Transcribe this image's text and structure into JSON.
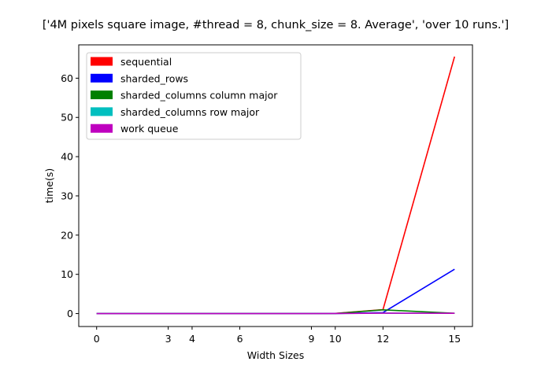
{
  "chart_data": {
    "type": "line",
    "title": "['4M pixels square image, #thread = 8, chunk_size = 8. Average', 'over 10 runs.']",
    "xlabel": "Width Sizes",
    "ylabel": "time(s)",
    "x": [
      0,
      3,
      4,
      6,
      9,
      10,
      12,
      15
    ],
    "xticks": [
      "0",
      "3",
      "4",
      "6",
      "9",
      "10",
      "12",
      "15"
    ],
    "yticks": [
      "0",
      "10",
      "20",
      "30",
      "40",
      "50",
      "60"
    ],
    "xlim": [
      -0.75,
      15.75
    ],
    "ylim": [
      -3.3,
      68.5
    ],
    "legend_position": "top-left",
    "series": [
      {
        "name": "sequential",
        "color": "#ff0000",
        "values": [
          0,
          0,
          0,
          0,
          0,
          0.05,
          1.0,
          65.5
        ]
      },
      {
        "name": "sharded_rows",
        "color": "#0000ff",
        "values": [
          0,
          0,
          0,
          0,
          0,
          0.02,
          0.25,
          11.3
        ]
      },
      {
        "name": "sharded_columns column major",
        "color": "#008000",
        "values": [
          0,
          0,
          0,
          0,
          0,
          0.03,
          0.95,
          0.08
        ]
      },
      {
        "name": "sharded_columns row major",
        "color": "#00bfbf",
        "values": [
          0,
          0,
          0,
          0,
          0,
          0.02,
          0.12,
          0.06
        ]
      },
      {
        "name": "work queue",
        "color": "#bf00bf",
        "values": [
          0,
          0,
          0,
          0,
          0,
          0.02,
          0.1,
          0.07
        ]
      }
    ]
  }
}
